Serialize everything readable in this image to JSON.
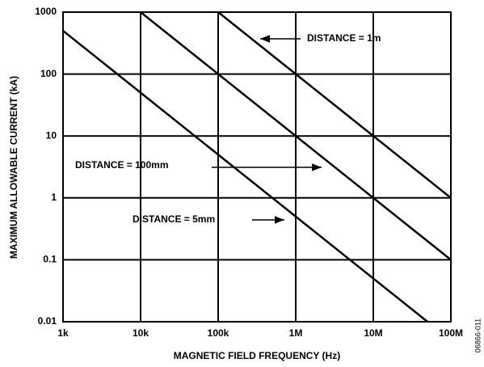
{
  "chart_data": {
    "type": "line",
    "x_label": "MAGNETIC FIELD FREQUENCY (Hz)",
    "y_label": "MAXIMUM ALLOWABLE CURRENT (kA)",
    "figure_id": "06866-011",
    "log_x": true,
    "log_y": true,
    "grid": true,
    "color": "#000000",
    "xlim": [
      1000,
      100000000
    ],
    "ylim": [
      0.01,
      1000
    ],
    "xticks": [
      {
        "value": 1000,
        "label": "1k"
      },
      {
        "value": 10000,
        "label": "10k"
      },
      {
        "value": 100000,
        "label": "100k"
      },
      {
        "value": 1000000,
        "label": "1M"
      },
      {
        "value": 10000000,
        "label": "10M"
      },
      {
        "value": 100000000,
        "label": "100M"
      }
    ],
    "yticks": [
      0.01,
      0.1,
      1,
      10,
      100,
      1000
    ],
    "series": [
      {
        "name": "DISTANCE = 1m",
        "x": [
          100000,
          100000000
        ],
        "values": [
          1000,
          1
        ]
      },
      {
        "name": "DISTANCE = 100mm",
        "x": [
          10000,
          100000000
        ],
        "values": [
          1000,
          0.1
        ]
      },
      {
        "name": "DISTANCE = 5mm",
        "x": [
          1000,
          50000000
        ],
        "values": [
          500,
          0.01
        ]
      }
    ]
  }
}
